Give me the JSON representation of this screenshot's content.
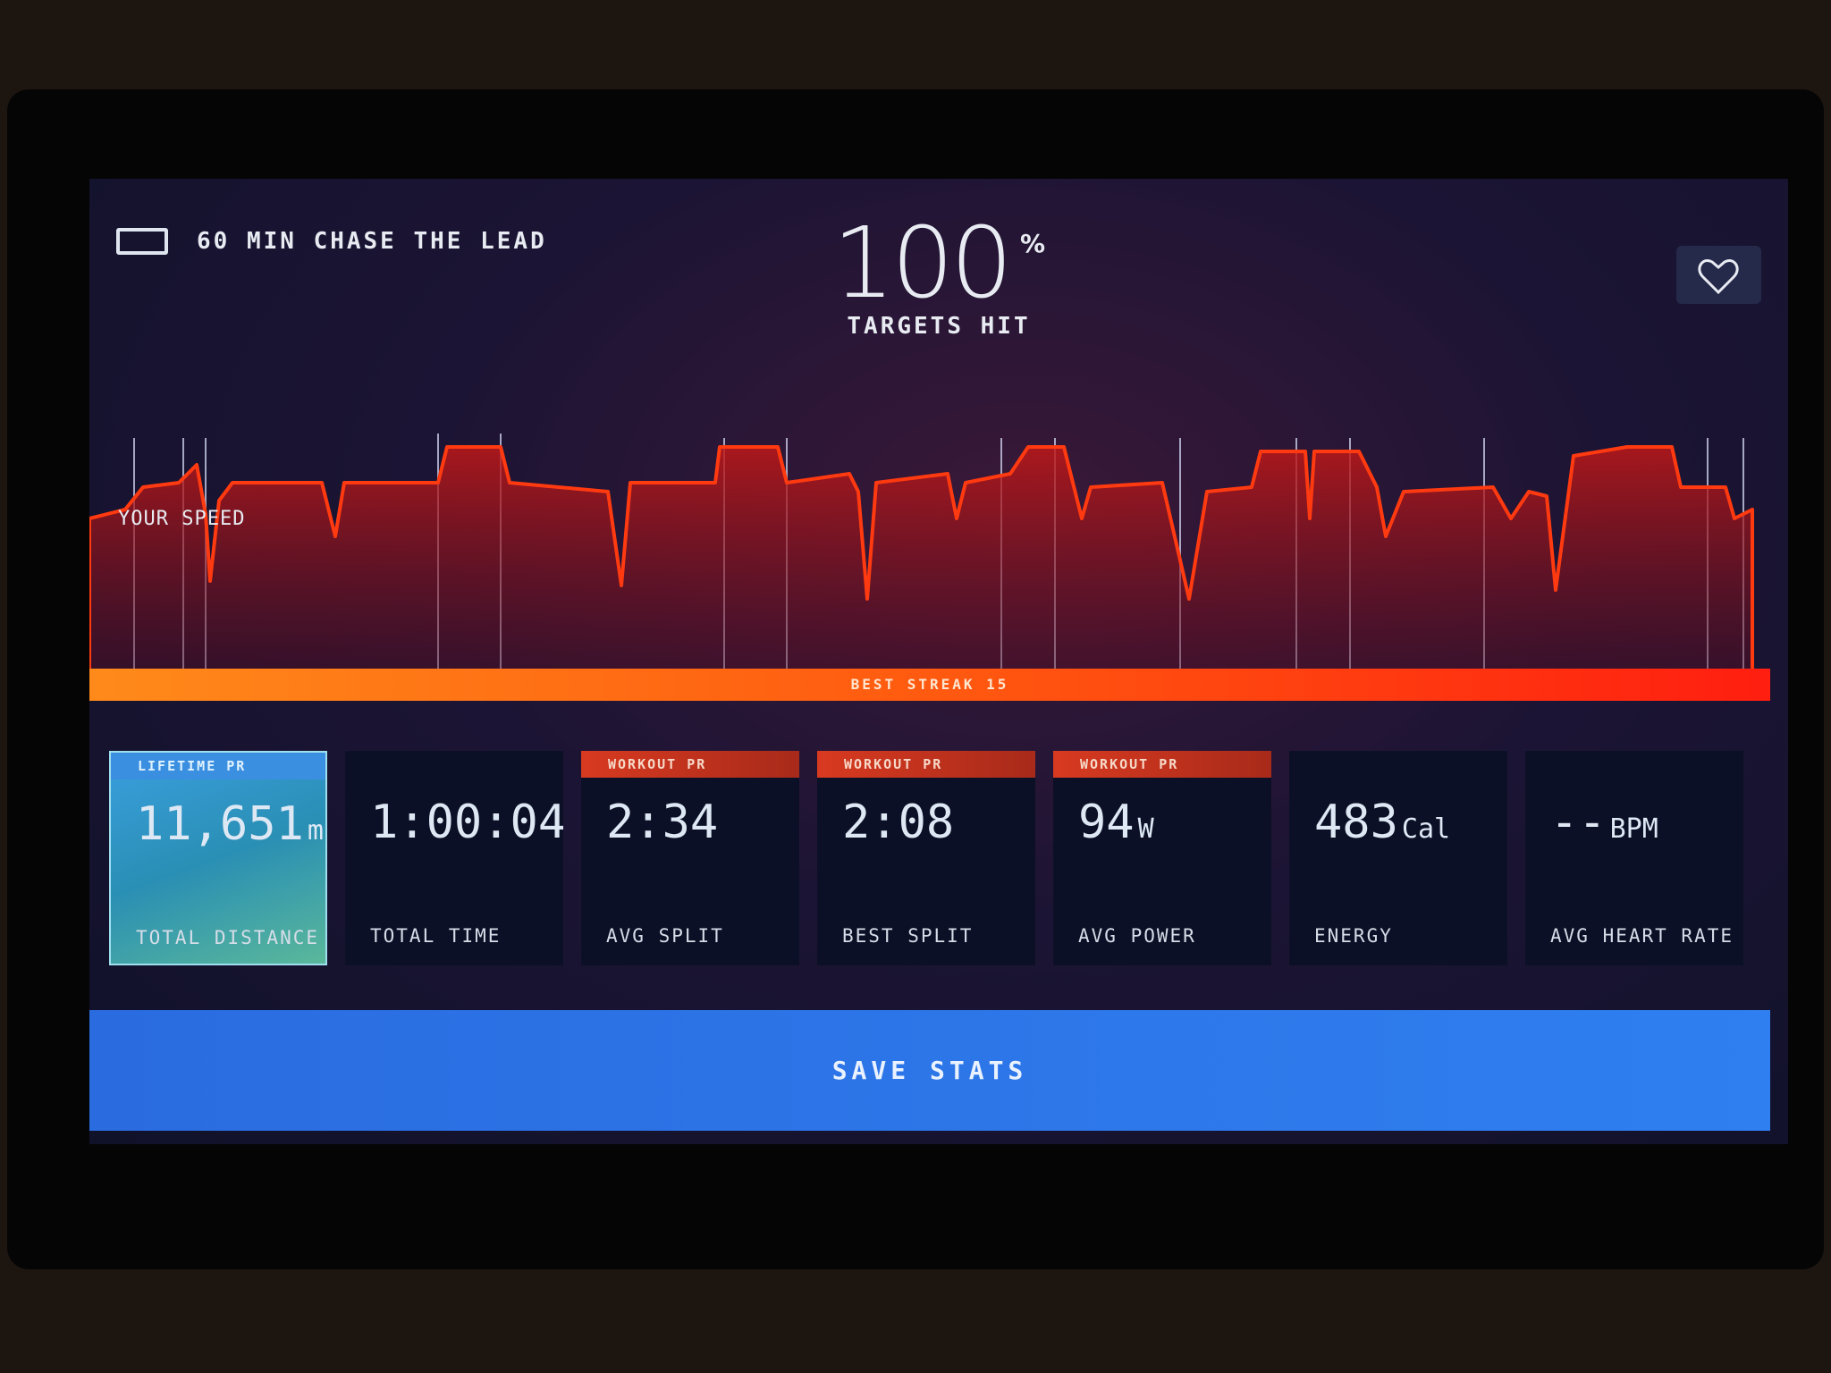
{
  "header": {
    "title": "60 MIN CHASE THE LEAD"
  },
  "score": {
    "value": "100",
    "unit": "%",
    "label": "TARGETS HIT"
  },
  "chart": {
    "label": "YOUR SPEED",
    "streak": "BEST STREAK 15"
  },
  "stats": [
    {
      "badge": "LIFETIME PR",
      "value": "11,651",
      "unit": "m",
      "label": "TOTAL DISTANCE"
    },
    {
      "value": "1:00:04",
      "label": "TOTAL TIME"
    },
    {
      "badge": "WORKOUT PR",
      "value": "2:34",
      "label": "AVG SPLIT"
    },
    {
      "badge": "WORKOUT PR",
      "value": "2:08",
      "label": "BEST SPLIT"
    },
    {
      "badge": "WORKOUT PR",
      "value": "94",
      "unit": "W",
      "label": "AVG POWER"
    },
    {
      "value": "483",
      "unit": "Cal",
      "label": "ENERGY"
    },
    {
      "value": "--",
      "unit": "BPM",
      "label": "AVG HEART RATE"
    }
  ],
  "button": "SAVE STATS"
}
